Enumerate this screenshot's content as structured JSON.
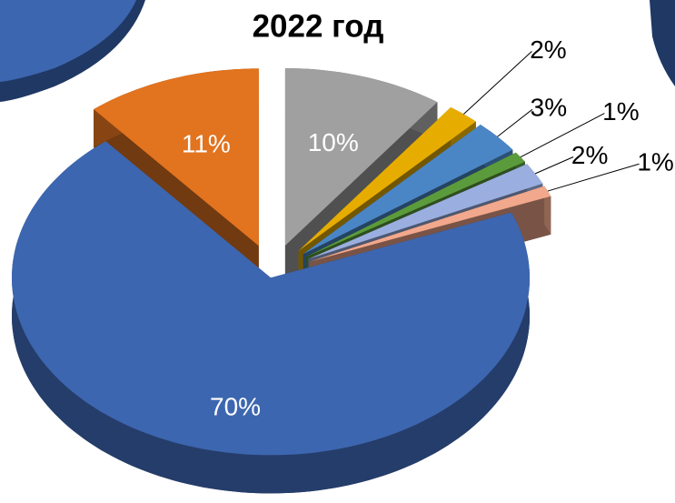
{
  "chart_data": {
    "type": "pie",
    "title": "2022 год",
    "values": [
      10,
      2,
      3,
      1,
      2,
      1,
      70,
      11
    ],
    "value_labels": [
      "10%",
      "2%",
      "3%",
      "1%",
      "2%",
      "1%",
      "70%",
      "11%"
    ],
    "colors": [
      "#a0a0a0",
      "#e6ad00",
      "#4a86c5",
      "#5b9b3c",
      "#9aaee0",
      "#f2a88c",
      "#3d66b0",
      "#e2731f"
    ]
  }
}
